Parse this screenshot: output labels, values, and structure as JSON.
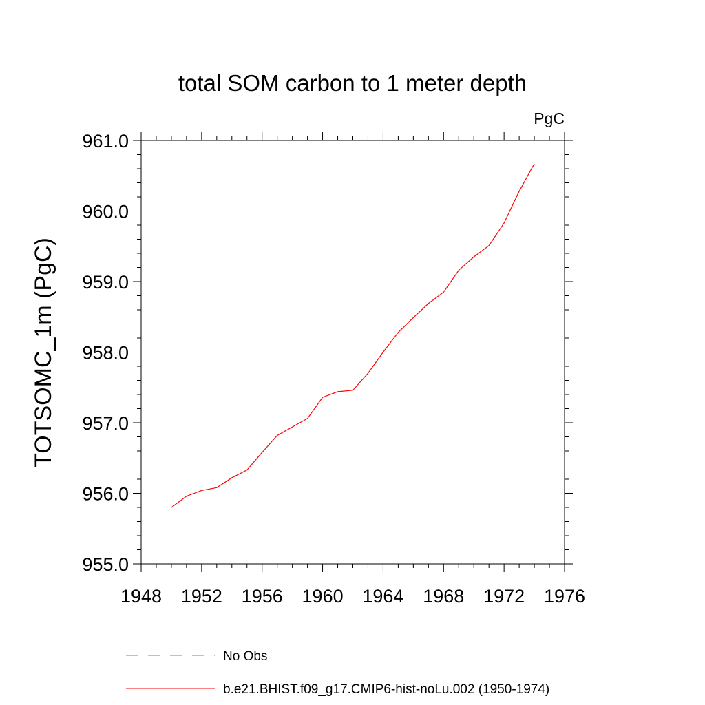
{
  "chart_data": {
    "type": "line",
    "title": "total SOM carbon to 1 meter depth",
    "units_label": "PgC",
    "ylabel": "TOTSOMC_1m  (PgC)",
    "xlabel": "",
    "xlim": [
      1948,
      1976
    ],
    "ylim": [
      955.0,
      961.0
    ],
    "x_ticks": [
      "1948",
      "1952",
      "1956",
      "1960",
      "1964",
      "1968",
      "1972",
      "1976"
    ],
    "y_ticks": [
      "955.0",
      "956.0",
      "957.0",
      "958.0",
      "959.0",
      "960.0",
      "961.0"
    ],
    "grid": false,
    "legend_position": "bottom",
    "series": [
      {
        "name": "b.e21.BHIST.f09_g17.CMIP6-hist-noLu.002 (1950-1974)",
        "color": "#ff0000",
        "style": "solid",
        "x": [
          1950,
          1951,
          1952,
          1953,
          1954,
          1955,
          1956,
          1957,
          1958,
          1959,
          1960,
          1961,
          1962,
          1963,
          1964,
          1965,
          1966,
          1967,
          1968,
          1969,
          1970,
          1971,
          1972,
          1973,
          1974
        ],
        "y": [
          955.8,
          955.96,
          956.04,
          956.08,
          956.22,
          956.33,
          956.58,
          956.82,
          956.94,
          957.06,
          957.36,
          957.44,
          957.46,
          957.7,
          958.0,
          958.28,
          958.49,
          958.69,
          958.85,
          959.16,
          959.35,
          959.51,
          959.83,
          960.28,
          960.67
        ]
      },
      {
        "name": "No Obs",
        "color": "#7b74c9",
        "style": "dashed",
        "x": [],
        "y": []
      }
    ]
  }
}
